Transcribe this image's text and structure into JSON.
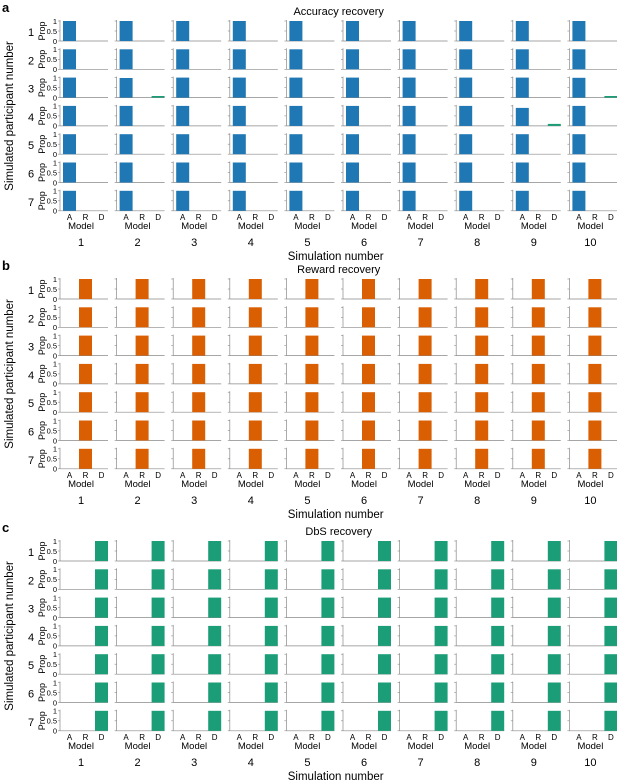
{
  "colors": {
    "accuracy": "#1f77b4",
    "reward": "#d95f02",
    "dbs": "#1b9e77",
    "axis": "#888888"
  },
  "chart_data": [
    {
      "panel_label": "a",
      "type": "bar",
      "title": "Accuracy recovery",
      "ylabel_outer": "Simulated participant number",
      "ylabel_inner": "Prop",
      "xlabel_inner": "Model",
      "xlabel_outer": "Simulation number",
      "categories": [
        "A",
        "R",
        "D"
      ],
      "ylim": [
        0,
        1
      ],
      "yticks": [
        "0",
        "0.5",
        "1"
      ],
      "columns": [
        "1",
        "2",
        "3",
        "4",
        "5",
        "6",
        "7",
        "8",
        "9",
        "10"
      ],
      "rows": [
        "1",
        "2",
        "3",
        "4",
        "5",
        "6",
        "7"
      ],
      "color_key": "accuracy",
      "bars": [
        [
          [
            1,
            0,
            0
          ],
          [
            1,
            0,
            0
          ],
          [
            1,
            0,
            0
          ],
          [
            1,
            0,
            0
          ],
          [
            1,
            0,
            0
          ],
          [
            1,
            0,
            0
          ],
          [
            1,
            0,
            0
          ],
          [
            1,
            0,
            0
          ],
          [
            1,
            0,
            0
          ],
          [
            1,
            0,
            0
          ]
        ],
        [
          [
            1,
            0,
            0
          ],
          [
            1,
            0,
            0
          ],
          [
            1,
            0,
            0
          ],
          [
            1,
            0,
            0
          ],
          [
            1,
            0,
            0
          ],
          [
            1,
            0,
            0
          ],
          [
            1,
            0,
            0
          ],
          [
            1,
            0,
            0
          ],
          [
            1,
            0,
            0
          ],
          [
            1,
            0,
            0
          ]
        ],
        [
          [
            1,
            0,
            0
          ],
          [
            0.98,
            0,
            0.02
          ],
          [
            1,
            0,
            0
          ],
          [
            1,
            0,
            0
          ],
          [
            1,
            0,
            0
          ],
          [
            1,
            0,
            0
          ],
          [
            1,
            0,
            0
          ],
          [
            1,
            0,
            0
          ],
          [
            1,
            0,
            0
          ],
          [
            0.99,
            0,
            0.01
          ]
        ],
        [
          [
            1,
            0,
            0
          ],
          [
            1,
            0,
            0
          ],
          [
            1,
            0,
            0
          ],
          [
            1,
            0,
            0
          ],
          [
            1,
            0,
            0
          ],
          [
            1,
            0,
            0
          ],
          [
            1,
            0,
            0
          ],
          [
            1,
            0,
            0
          ],
          [
            0.9,
            0,
            0.1
          ],
          [
            1,
            0,
            0
          ]
        ],
        [
          [
            1,
            0,
            0
          ],
          [
            1,
            0,
            0
          ],
          [
            1,
            0,
            0
          ],
          [
            1,
            0,
            0
          ],
          [
            1,
            0,
            0
          ],
          [
            1,
            0,
            0
          ],
          [
            1,
            0,
            0
          ],
          [
            1,
            0,
            0
          ],
          [
            1,
            0,
            0
          ],
          [
            1,
            0,
            0
          ]
        ],
        [
          [
            1,
            0,
            0
          ],
          [
            1,
            0,
            0
          ],
          [
            1,
            0,
            0
          ],
          [
            1,
            0,
            0
          ],
          [
            1,
            0,
            0
          ],
          [
            1,
            0,
            0
          ],
          [
            1,
            0,
            0
          ],
          [
            1,
            0,
            0
          ],
          [
            1,
            0,
            0
          ],
          [
            1,
            0,
            0
          ]
        ],
        [
          [
            1,
            0,
            0
          ],
          [
            1,
            0,
            0
          ],
          [
            1,
            0,
            0
          ],
          [
            1,
            0,
            0
          ],
          [
            1,
            0,
            0
          ],
          [
            1,
            0,
            0
          ],
          [
            1,
            0,
            0
          ],
          [
            1,
            0,
            0
          ],
          [
            1,
            0,
            0
          ],
          [
            1,
            0,
            0
          ]
        ]
      ]
    },
    {
      "panel_label": "b",
      "type": "bar",
      "title": "Reward recovery",
      "ylabel_outer": "Simulated participant number",
      "ylabel_inner": "Prop",
      "xlabel_inner": "Model",
      "xlabel_outer": "Simulation number",
      "categories": [
        "A",
        "R",
        "D"
      ],
      "ylim": [
        0,
        1
      ],
      "yticks": [
        "0",
        "0.5",
        "1"
      ],
      "columns": [
        "1",
        "2",
        "3",
        "4",
        "5",
        "6",
        "7",
        "8",
        "9",
        "10"
      ],
      "rows": [
        "1",
        "2",
        "3",
        "4",
        "5",
        "6",
        "7"
      ],
      "color_key": "reward",
      "bars": [
        [
          [
            0,
            1,
            0
          ],
          [
            0,
            1,
            0
          ],
          [
            0,
            1,
            0
          ],
          [
            0,
            1,
            0
          ],
          [
            0,
            1,
            0
          ],
          [
            0,
            1,
            0
          ],
          [
            0,
            1,
            0
          ],
          [
            0,
            1,
            0
          ],
          [
            0,
            1,
            0
          ],
          [
            0,
            1,
            0
          ]
        ],
        [
          [
            0,
            1,
            0
          ],
          [
            0,
            1,
            0
          ],
          [
            0,
            1,
            0
          ],
          [
            0,
            1,
            0
          ],
          [
            0,
            1,
            0
          ],
          [
            0,
            1,
            0
          ],
          [
            0,
            1,
            0
          ],
          [
            0,
            1,
            0
          ],
          [
            0,
            1,
            0
          ],
          [
            0,
            1,
            0
          ]
        ],
        [
          [
            0,
            1,
            0
          ],
          [
            0,
            1,
            0
          ],
          [
            0,
            1,
            0
          ],
          [
            0,
            1,
            0
          ],
          [
            0,
            1,
            0
          ],
          [
            0,
            1,
            0
          ],
          [
            0,
            1,
            0
          ],
          [
            0,
            1,
            0
          ],
          [
            0,
            1,
            0
          ],
          [
            0,
            1,
            0
          ]
        ],
        [
          [
            0,
            1,
            0
          ],
          [
            0,
            1,
            0
          ],
          [
            0,
            1,
            0
          ],
          [
            0,
            1,
            0
          ],
          [
            0,
            1,
            0
          ],
          [
            0,
            1,
            0
          ],
          [
            0,
            1,
            0
          ],
          [
            0,
            1,
            0
          ],
          [
            0,
            1,
            0
          ],
          [
            0,
            1,
            0
          ]
        ],
        [
          [
            0,
            1,
            0
          ],
          [
            0,
            1,
            0
          ],
          [
            0,
            1,
            0
          ],
          [
            0,
            1,
            0
          ],
          [
            0,
            1,
            0
          ],
          [
            0,
            1,
            0
          ],
          [
            0,
            1,
            0
          ],
          [
            0,
            1,
            0
          ],
          [
            0,
            1,
            0
          ],
          [
            0,
            1,
            0
          ]
        ],
        [
          [
            0,
            1,
            0
          ],
          [
            0,
            1,
            0
          ],
          [
            0,
            1,
            0
          ],
          [
            0,
            1,
            0
          ],
          [
            0,
            1,
            0
          ],
          [
            0,
            1,
            0
          ],
          [
            0,
            1,
            0
          ],
          [
            0,
            1,
            0
          ],
          [
            0,
            1,
            0
          ],
          [
            0,
            1,
            0
          ]
        ],
        [
          [
            0,
            1,
            0
          ],
          [
            0,
            1,
            0
          ],
          [
            0,
            1,
            0
          ],
          [
            0,
            1,
            0
          ],
          [
            0,
            1,
            0
          ],
          [
            0,
            1,
            0
          ],
          [
            0,
            1,
            0
          ],
          [
            0,
            1,
            0
          ],
          [
            0,
            1,
            0
          ],
          [
            0,
            1,
            0
          ]
        ]
      ]
    },
    {
      "panel_label": "c",
      "type": "bar",
      "title": "DbS recovery",
      "ylabel_outer": "Simulated participant number",
      "ylabel_inner": "Prop",
      "xlabel_inner": "Model",
      "xlabel_outer": "Simulation number",
      "categories": [
        "A",
        "R",
        "D"
      ],
      "ylim": [
        0,
        1
      ],
      "yticks": [
        "0",
        "0.5",
        "1"
      ],
      "columns": [
        "1",
        "2",
        "3",
        "4",
        "5",
        "6",
        "7",
        "8",
        "9",
        "10"
      ],
      "rows": [
        "1",
        "2",
        "3",
        "4",
        "5",
        "6",
        "7"
      ],
      "color_key": "dbs",
      "bars": [
        [
          [
            0,
            0,
            1
          ],
          [
            0,
            0,
            1
          ],
          [
            0,
            0,
            1
          ],
          [
            0,
            0,
            1
          ],
          [
            0,
            0,
            1
          ],
          [
            0,
            0,
            1
          ],
          [
            0,
            0,
            1
          ],
          [
            0,
            0,
            1
          ],
          [
            0,
            0,
            1
          ],
          [
            0,
            0,
            1
          ]
        ],
        [
          [
            0,
            0,
            1
          ],
          [
            0,
            0,
            1
          ],
          [
            0,
            0,
            1
          ],
          [
            0,
            0,
            1
          ],
          [
            0,
            0,
            1
          ],
          [
            0,
            0,
            1
          ],
          [
            0,
            0,
            1
          ],
          [
            0,
            0,
            1
          ],
          [
            0,
            0,
            1
          ],
          [
            0,
            0,
            1
          ]
        ],
        [
          [
            0,
            0,
            1
          ],
          [
            0,
            0,
            1
          ],
          [
            0,
            0,
            1
          ],
          [
            0,
            0,
            1
          ],
          [
            0,
            0,
            1
          ],
          [
            0,
            0,
            1
          ],
          [
            0,
            0,
            1
          ],
          [
            0,
            0,
            1
          ],
          [
            0,
            0,
            1
          ],
          [
            0,
            0,
            1
          ]
        ],
        [
          [
            0,
            0,
            1
          ],
          [
            0,
            0,
            1
          ],
          [
            0,
            0,
            1
          ],
          [
            0,
            0,
            1
          ],
          [
            0,
            0,
            1
          ],
          [
            0,
            0,
            1
          ],
          [
            0,
            0,
            1
          ],
          [
            0,
            0,
            1
          ],
          [
            0,
            0,
            1
          ],
          [
            0,
            0,
            1
          ]
        ],
        [
          [
            0,
            0,
            1
          ],
          [
            0,
            0,
            1
          ],
          [
            0,
            0,
            1
          ],
          [
            0,
            0,
            1
          ],
          [
            0,
            0,
            1
          ],
          [
            0,
            0,
            1
          ],
          [
            0,
            0,
            1
          ],
          [
            0,
            0,
            1
          ],
          [
            0,
            0,
            1
          ],
          [
            0,
            0,
            1
          ]
        ],
        [
          [
            0,
            0,
            1
          ],
          [
            0,
            0,
            1
          ],
          [
            0,
            0,
            1
          ],
          [
            0,
            0,
            1
          ],
          [
            0,
            0,
            1
          ],
          [
            0,
            0,
            1
          ],
          [
            0,
            0,
            1
          ],
          [
            0,
            0,
            1
          ],
          [
            0,
            0,
            1
          ],
          [
            0,
            0,
            1
          ]
        ],
        [
          [
            0,
            0,
            1
          ],
          [
            0,
            0,
            1
          ],
          [
            0,
            0,
            1
          ],
          [
            0,
            0,
            1
          ],
          [
            0,
            0,
            1
          ],
          [
            0,
            0,
            1
          ],
          [
            0,
            0,
            1
          ],
          [
            0,
            0,
            1
          ],
          [
            0,
            0,
            1
          ],
          [
            0,
            0,
            1
          ]
        ]
      ]
    }
  ]
}
